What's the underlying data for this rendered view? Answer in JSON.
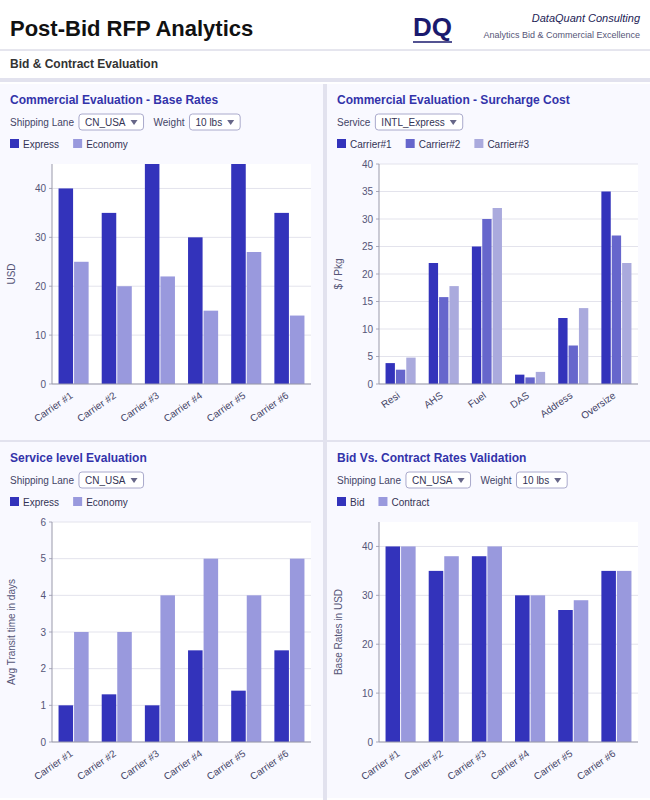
{
  "title": "Post-Bid RFP Analytics",
  "subtitle": "Bid & Contract Evaluation",
  "annotations": [
    "DQ",
    "DataQuant Consulting",
    "Analytics Bid & Commercial Excellence"
  ],
  "chart_data": [
    {
      "type": "bar",
      "title": "Commercial Evaluation - Base Rates",
      "annotations": [
        "Shipping Lane",
        "CN_USA",
        "Weight",
        "10 lbs"
      ],
      "ylabel": "USD",
      "categories": [
        "Carrier #1",
        "Carrier #2",
        "Carrier #3",
        "Carrier #4",
        "Carrier #5",
        "Carrier #6"
      ],
      "series": [
        {
          "name": "Express",
          "color": "#3333bb",
          "values": [
            40,
            35,
            45,
            30,
            45,
            35
          ]
        },
        {
          "name": "Economy",
          "color": "#9999dd",
          "values": [
            25,
            20,
            22,
            15,
            27,
            14
          ]
        }
      ],
      "ylim": [
        0,
        45
      ],
      "yticks": [
        0,
        10,
        20,
        30,
        40
      ],
      "grid": true,
      "legend": "upper left"
    },
    {
      "type": "bar",
      "title": "Commercial Evaluation - Surcharge Cost",
      "annotations": [
        "Service",
        "INTL_Express"
      ],
      "ylabel": "$ / Pkg",
      "categories": [
        "Resi",
        "AHS",
        "Fuel",
        "DAS",
        "Address",
        "Oversize"
      ],
      "series": [
        {
          "name": "Carrier#1",
          "color": "#3333bb",
          "values": [
            3.8,
            22,
            25,
            1.7,
            12,
            35
          ]
        },
        {
          "name": "Carrier#2",
          "color": "#6666cc",
          "values": [
            2.6,
            15.8,
            30,
            1.2,
            7,
            27
          ]
        },
        {
          "name": "Carrier#3",
          "color": "#aaaadd",
          "values": [
            4.8,
            17.8,
            32,
            2.2,
            13.8,
            22
          ]
        }
      ],
      "ylim": [
        0,
        40
      ],
      "yticks": [
        0,
        5,
        10,
        15,
        20,
        25,
        30,
        35,
        40
      ],
      "grid": true,
      "legend": "upper left"
    },
    {
      "type": "bar",
      "title": "Service level Evaluation",
      "annotations": [
        "Shipping Lane",
        "CN_USA"
      ],
      "ylabel": "Avg Transit time in days",
      "categories": [
        "Carrier #1",
        "Carrier #2",
        "Carrier #3",
        "Carrier #4",
        "Carrier #5",
        "Carrier #6"
      ],
      "series": [
        {
          "name": "Express",
          "color": "#3333bb",
          "values": [
            1.0,
            1.3,
            1.0,
            2.5,
            1.4,
            2.5
          ]
        },
        {
          "name": "Economy",
          "color": "#9999dd",
          "values": [
            3.0,
            3.0,
            4.0,
            5.0,
            4.0,
            5.0
          ]
        }
      ],
      "ylim": [
        0,
        6
      ],
      "yticks": [
        0,
        1,
        2,
        3,
        4,
        5,
        6
      ],
      "grid": true,
      "legend": "upper left"
    },
    {
      "type": "bar",
      "title": "Bid Vs. Contract Rates Validation",
      "annotations": [
        "Shipping Lane",
        "CN_USA",
        "Weight",
        "10 lbs"
      ],
      "ylabel": "Base Rates in USD",
      "categories": [
        "Carrier #1",
        "Carrier #2",
        "Carrier #3",
        "Carrier #4",
        "Carrier #5",
        "Carrier #6"
      ],
      "series": [
        {
          "name": "Bid",
          "color": "#3333bb",
          "values": [
            40,
            35,
            38,
            30,
            27,
            35
          ]
        },
        {
          "name": "Contract",
          "color": "#9999dd",
          "values": [
            40,
            38,
            40,
            30,
            29,
            35
          ]
        }
      ],
      "ylim": [
        0,
        45
      ],
      "yticks": [
        0,
        10,
        20,
        30,
        40
      ],
      "grid": true,
      "legend": "upper left"
    }
  ]
}
